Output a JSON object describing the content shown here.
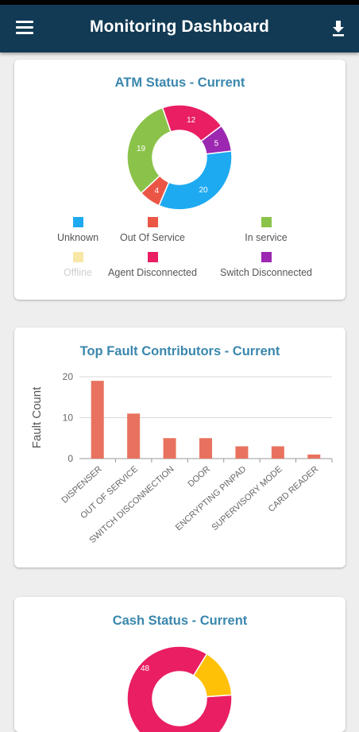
{
  "app": {
    "title": "Monitoring Dashboard",
    "menu_icon": "menu-icon",
    "download_icon": "download-icon"
  },
  "atm_status": {
    "title": "ATM Status - Current",
    "chart_data": {
      "type": "pie",
      "title": "ATM Status - Current",
      "donut": true,
      "slices": [
        {
          "label": "Unknown",
          "value": 20,
          "color": "#1eaaf1",
          "shown": true
        },
        {
          "label": "Out Of Service",
          "value": 4,
          "color": "#ea5545",
          "shown": true
        },
        {
          "label": "In service",
          "value": 19,
          "color": "#8bc34a",
          "shown": true
        },
        {
          "label": "Offline",
          "value": 0,
          "color": "#f9e7a8",
          "shown": false
        },
        {
          "label": "Agent Disconnected",
          "value": 12,
          "color": "#e91e63",
          "shown": true
        },
        {
          "label": "Switch Disconnected",
          "value": 5,
          "color": "#9c27b0",
          "shown": true
        }
      ],
      "legend_position": "bottom"
    }
  },
  "top_faults": {
    "title": "Top Fault Contributors - Current",
    "chart_data": {
      "type": "bar",
      "title": "Top Fault Contributors - Current",
      "categories": [
        "DISPENSER",
        "OUT OF SERVICE",
        "SWITCH DISCONNECTION",
        "DOOR",
        "ENCRYPTING PINPAD",
        "SUPERVISORY MODE",
        "CARD READER"
      ],
      "values": [
        19,
        11,
        5,
        5,
        3,
        3,
        1
      ],
      "ylabel": "Fault Count",
      "xlabel": "",
      "ylim": [
        0,
        20
      ],
      "yticks": [
        0,
        10,
        20
      ],
      "grid": true,
      "color": "#e8725f"
    }
  },
  "cash_status": {
    "title": "Cash Status - Current",
    "chart_data": {
      "type": "pie",
      "title": "Cash Status - Current",
      "donut": true,
      "slices_visible": [
        {
          "value": 48,
          "color": "#e91e63"
        },
        {
          "color": "#ffc107"
        }
      ]
    }
  }
}
